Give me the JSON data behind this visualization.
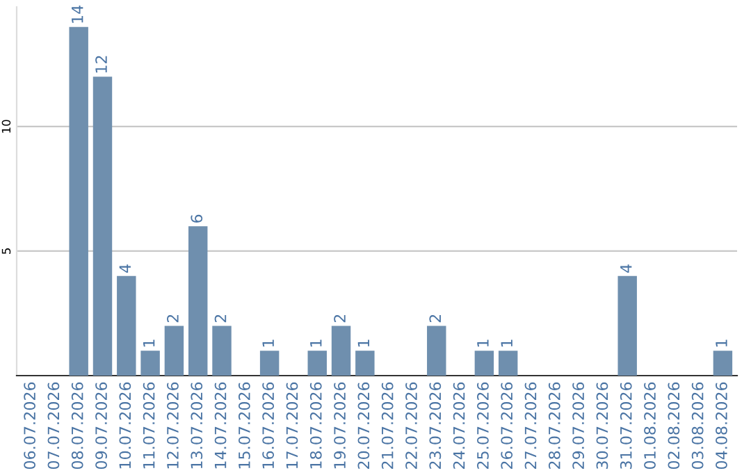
{
  "chart_data": {
    "type": "bar",
    "categories": [
      "06.07.2026",
      "07.07.2026",
      "08.07.2026",
      "09.07.2026",
      "10.07.2026",
      "11.07.2026",
      "12.07.2026",
      "13.07.2026",
      "14.07.2026",
      "15.07.2026",
      "16.07.2026",
      "17.07.2026",
      "18.07.2026",
      "19.07.2026",
      "20.07.2026",
      "21.07.2026",
      "22.07.2026",
      "23.07.2026",
      "24.07.2026",
      "25.07.2026",
      "26.07.2026",
      "27.07.2026",
      "28.07.2026",
      "29.07.2026",
      "30.07.2026",
      "31.07.2026",
      "01.08.2026",
      "02.08.2026",
      "03.08.2026",
      "04.08.2026"
    ],
    "values": [
      0,
      0,
      14,
      12,
      4,
      1,
      2,
      6,
      2,
      0,
      1,
      0,
      1,
      2,
      1,
      0,
      0,
      2,
      0,
      1,
      1,
      0,
      0,
      0,
      0,
      4,
      0,
      0,
      0,
      1
    ],
    "value_labels": [
      null,
      null,
      "14",
      "12",
      "4",
      "1",
      "2",
      "6",
      "2",
      null,
      "1",
      null,
      "1",
      "2",
      "1",
      null,
      null,
      "2",
      null,
      "1",
      "1",
      null,
      null,
      null,
      null,
      "4",
      null,
      null,
      null,
      "1"
    ],
    "color": "#6f8fae",
    "ylim": [
      0,
      14.8
    ],
    "yticks": [
      5,
      10
    ],
    "grid": "y"
  }
}
